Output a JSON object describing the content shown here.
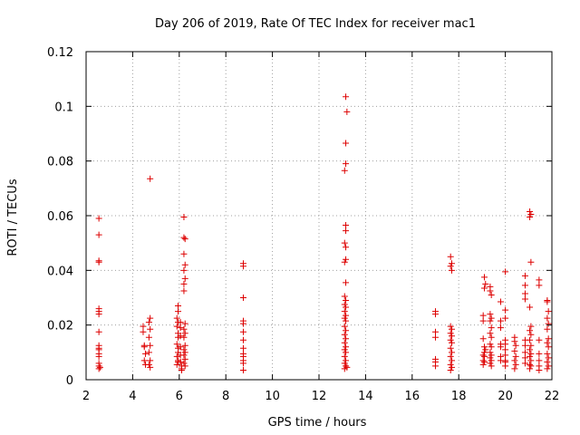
{
  "chart_data": {
    "type": "scatter",
    "title": "Day 206 of 2019, Rate Of TEC Index for receiver mac1",
    "xlabel": "GPS time / hours",
    "ylabel": "ROTI / TECUs",
    "xlim": [
      2,
      22
    ],
    "ylim": [
      0,
      0.12
    ],
    "xticks": [
      2,
      4,
      6,
      8,
      10,
      12,
      14,
      16,
      18,
      20,
      22
    ],
    "yticks": [
      0,
      0.02,
      0.04,
      0.06,
      0.08,
      0.1,
      0.12
    ],
    "xtick_labels": [
      "2",
      "4",
      "6",
      "8",
      "10",
      "12",
      "14",
      "16",
      "18",
      "20",
      "22"
    ],
    "ytick_labels": [
      "0",
      "0.02",
      "0.04",
      "0.06",
      "0.08",
      "0.1",
      "0.12"
    ],
    "grid": true,
    "marker": "plus",
    "color": "#dd0000",
    "series": [
      {
        "name": "ROTI",
        "points": [
          [
            2.55,
            0.059
          ],
          [
            2.55,
            0.053
          ],
          [
            2.55,
            0.0435
          ],
          [
            2.55,
            0.043
          ],
          [
            2.55,
            0.026
          ],
          [
            2.55,
            0.025
          ],
          [
            2.55,
            0.024
          ],
          [
            2.55,
            0.0175
          ],
          [
            2.55,
            0.0125
          ],
          [
            2.55,
            0.0115
          ],
          [
            2.55,
            0.011
          ],
          [
            2.55,
            0.0095
          ],
          [
            2.55,
            0.0085
          ],
          [
            2.55,
            0.006
          ],
          [
            2.55,
            0.005
          ],
          [
            2.55,
            0.004
          ],
          [
            2.6,
            0.0045
          ],
          [
            4.45,
            0.0195
          ],
          [
            4.45,
            0.0175
          ],
          [
            4.5,
            0.0125
          ],
          [
            4.5,
            0.012
          ],
          [
            4.55,
            0.0095
          ],
          [
            4.5,
            0.007
          ],
          [
            4.55,
            0.0055
          ],
          [
            4.75,
            0.0735
          ],
          [
            4.75,
            0.0225
          ],
          [
            4.7,
            0.021
          ],
          [
            4.75,
            0.0185
          ],
          [
            4.7,
            0.0155
          ],
          [
            4.75,
            0.0125
          ],
          [
            4.7,
            0.01
          ],
          [
            4.75,
            0.007
          ],
          [
            4.7,
            0.0055
          ],
          [
            4.75,
            0.0045
          ],
          [
            5.95,
            0.027
          ],
          [
            5.95,
            0.025
          ],
          [
            5.9,
            0.0225
          ],
          [
            5.95,
            0.021
          ],
          [
            5.9,
            0.0195
          ],
          [
            5.95,
            0.017
          ],
          [
            5.95,
            0.0155
          ],
          [
            5.9,
            0.013
          ],
          [
            5.95,
            0.0115
          ],
          [
            5.95,
            0.01
          ],
          [
            5.9,
            0.0085
          ],
          [
            5.95,
            0.007
          ],
          [
            5.95,
            0.0065
          ],
          [
            5.9,
            0.0055
          ],
          [
            6.05,
            0.021
          ],
          [
            6.05,
            0.019
          ],
          [
            6.05,
            0.016
          ],
          [
            6.05,
            0.012
          ],
          [
            6.05,
            0.009
          ],
          [
            6.05,
            0.0065
          ],
          [
            6.1,
            0.005
          ],
          [
            6.1,
            0.004
          ],
          [
            6.1,
            0.0035
          ],
          [
            6.2,
            0.0595
          ],
          [
            6.2,
            0.052
          ],
          [
            6.25,
            0.0515
          ],
          [
            6.2,
            0.046
          ],
          [
            6.25,
            0.042
          ],
          [
            6.2,
            0.04
          ],
          [
            6.25,
            0.037
          ],
          [
            6.2,
            0.035
          ],
          [
            6.2,
            0.0325
          ],
          [
            6.25,
            0.0205
          ],
          [
            6.2,
            0.0185
          ],
          [
            6.25,
            0.017
          ],
          [
            6.2,
            0.0155
          ],
          [
            6.25,
            0.0125
          ],
          [
            6.2,
            0.011
          ],
          [
            6.25,
            0.01
          ],
          [
            6.2,
            0.009
          ],
          [
            6.25,
            0.0075
          ],
          [
            6.2,
            0.006
          ],
          [
            6.25,
            0.005
          ],
          [
            8.75,
            0.0425
          ],
          [
            8.75,
            0.0415
          ],
          [
            8.75,
            0.03
          ],
          [
            8.75,
            0.0215
          ],
          [
            8.75,
            0.0205
          ],
          [
            8.75,
            0.0175
          ],
          [
            8.75,
            0.0145
          ],
          [
            8.75,
            0.0115
          ],
          [
            8.75,
            0.0095
          ],
          [
            8.75,
            0.0085
          ],
          [
            8.75,
            0.007
          ],
          [
            8.75,
            0.006
          ],
          [
            8.75,
            0.0035
          ],
          [
            13.15,
            0.1035
          ],
          [
            13.2,
            0.098
          ],
          [
            13.15,
            0.0865
          ],
          [
            13.15,
            0.079
          ],
          [
            13.1,
            0.0765
          ],
          [
            13.15,
            0.0565
          ],
          [
            13.15,
            0.0545
          ],
          [
            13.1,
            0.05
          ],
          [
            13.15,
            0.0485
          ],
          [
            13.15,
            0.044
          ],
          [
            13.1,
            0.043
          ],
          [
            13.15,
            0.0355
          ],
          [
            13.1,
            0.0305
          ],
          [
            13.15,
            0.029
          ],
          [
            13.1,
            0.0275
          ],
          [
            13.15,
            0.0265
          ],
          [
            13.1,
            0.025
          ],
          [
            13.15,
            0.0235
          ],
          [
            13.1,
            0.0225
          ],
          [
            13.15,
            0.0215
          ],
          [
            13.1,
            0.0195
          ],
          [
            13.15,
            0.018
          ],
          [
            13.1,
            0.0165
          ],
          [
            13.15,
            0.015
          ],
          [
            13.1,
            0.0135
          ],
          [
            13.15,
            0.012
          ],
          [
            13.1,
            0.011
          ],
          [
            13.15,
            0.01
          ],
          [
            13.1,
            0.0085
          ],
          [
            13.15,
            0.007
          ],
          [
            13.1,
            0.006
          ],
          [
            13.15,
            0.005
          ],
          [
            13.2,
            0.0045
          ],
          [
            13.1,
            0.004
          ],
          [
            17.0,
            0.025
          ],
          [
            17.0,
            0.024
          ],
          [
            17.0,
            0.0175
          ],
          [
            17.0,
            0.0155
          ],
          [
            17.0,
            0.0075
          ],
          [
            17.0,
            0.0065
          ],
          [
            17.0,
            0.005
          ],
          [
            17.65,
            0.045
          ],
          [
            17.7,
            0.0425
          ],
          [
            17.65,
            0.0415
          ],
          [
            17.7,
            0.04
          ],
          [
            17.65,
            0.0195
          ],
          [
            17.7,
            0.0185
          ],
          [
            17.65,
            0.017
          ],
          [
            17.7,
            0.016
          ],
          [
            17.65,
            0.0145
          ],
          [
            17.7,
            0.0135
          ],
          [
            17.65,
            0.0115
          ],
          [
            17.7,
            0.01
          ],
          [
            17.65,
            0.0085
          ],
          [
            17.7,
            0.007
          ],
          [
            17.65,
            0.0055
          ],
          [
            17.7,
            0.0045
          ],
          [
            17.65,
            0.0035
          ],
          [
            19.05,
            0.0235
          ],
          [
            19.05,
            0.0215
          ],
          [
            19.1,
            0.0375
          ],
          [
            19.15,
            0.035
          ],
          [
            19.1,
            0.0335
          ],
          [
            19.05,
            0.015
          ],
          [
            19.1,
            0.012
          ],
          [
            19.15,
            0.011
          ],
          [
            19.1,
            0.01
          ],
          [
            19.05,
            0.009
          ],
          [
            19.1,
            0.0085
          ],
          [
            19.05,
            0.007
          ],
          [
            19.1,
            0.0065
          ],
          [
            19.05,
            0.0055
          ],
          [
            19.35,
            0.034
          ],
          [
            19.35,
            0.0325
          ],
          [
            19.4,
            0.031
          ],
          [
            19.35,
            0.024
          ],
          [
            19.4,
            0.0225
          ],
          [
            19.35,
            0.0215
          ],
          [
            19.4,
            0.019
          ],
          [
            19.35,
            0.017
          ],
          [
            19.4,
            0.0155
          ],
          [
            19.35,
            0.013
          ],
          [
            19.4,
            0.012
          ],
          [
            19.35,
            0.01
          ],
          [
            19.4,
            0.009
          ],
          [
            19.35,
            0.008
          ],
          [
            19.4,
            0.007
          ],
          [
            19.35,
            0.006
          ],
          [
            19.4,
            0.005
          ],
          [
            19.8,
            0.0285
          ],
          [
            19.8,
            0.0215
          ],
          [
            19.8,
            0.019
          ],
          [
            19.8,
            0.013
          ],
          [
            19.8,
            0.012
          ],
          [
            19.8,
            0.0085
          ],
          [
            19.8,
            0.007
          ],
          [
            20.0,
            0.0395
          ],
          [
            20.0,
            0.0255
          ],
          [
            20.0,
            0.0225
          ],
          [
            20.0,
            0.0145
          ],
          [
            20.0,
            0.013
          ],
          [
            20.0,
            0.011
          ],
          [
            20.0,
            0.009
          ],
          [
            20.0,
            0.007
          ],
          [
            20.0,
            0.0065
          ],
          [
            20.0,
            0.005
          ],
          [
            20.4,
            0.0155
          ],
          [
            20.4,
            0.014
          ],
          [
            20.45,
            0.0125
          ],
          [
            20.4,
            0.0105
          ],
          [
            20.45,
            0.0085
          ],
          [
            20.4,
            0.007
          ],
          [
            20.45,
            0.0055
          ],
          [
            20.4,
            0.004
          ],
          [
            20.85,
            0.038
          ],
          [
            20.85,
            0.0345
          ],
          [
            20.85,
            0.0315
          ],
          [
            20.85,
            0.0295
          ],
          [
            20.85,
            0.0145
          ],
          [
            20.85,
            0.0125
          ],
          [
            20.85,
            0.01
          ],
          [
            20.85,
            0.008
          ],
          [
            20.85,
            0.006
          ],
          [
            21.05,
            0.0615
          ],
          [
            21.1,
            0.0605
          ],
          [
            21.05,
            0.0595
          ],
          [
            21.1,
            0.043
          ],
          [
            21.05,
            0.0265
          ],
          [
            21.1,
            0.0195
          ],
          [
            21.05,
            0.018
          ],
          [
            21.1,
            0.0165
          ],
          [
            21.05,
            0.0145
          ],
          [
            21.1,
            0.0125
          ],
          [
            21.05,
            0.011
          ],
          [
            21.1,
            0.0095
          ],
          [
            21.05,
            0.0085
          ],
          [
            21.1,
            0.007
          ],
          [
            21.05,
            0.0055
          ],
          [
            21.1,
            0.005
          ],
          [
            21.05,
            0.004
          ],
          [
            21.45,
            0.0365
          ],
          [
            21.45,
            0.0345
          ],
          [
            21.45,
            0.0145
          ],
          [
            21.45,
            0.0095
          ],
          [
            21.45,
            0.007
          ],
          [
            21.45,
            0.005
          ],
          [
            21.45,
            0.0035
          ],
          [
            21.8,
            0.029
          ],
          [
            21.8,
            0.0285
          ],
          [
            21.85,
            0.025
          ],
          [
            21.8,
            0.0225
          ],
          [
            21.85,
            0.0205
          ],
          [
            21.8,
            0.0185
          ],
          [
            21.85,
            0.015
          ],
          [
            21.8,
            0.0135
          ],
          [
            21.85,
            0.012
          ],
          [
            21.8,
            0.0095
          ],
          [
            21.85,
            0.008
          ],
          [
            21.8,
            0.0065
          ],
          [
            21.85,
            0.005
          ],
          [
            21.8,
            0.004
          ]
        ]
      }
    ]
  }
}
